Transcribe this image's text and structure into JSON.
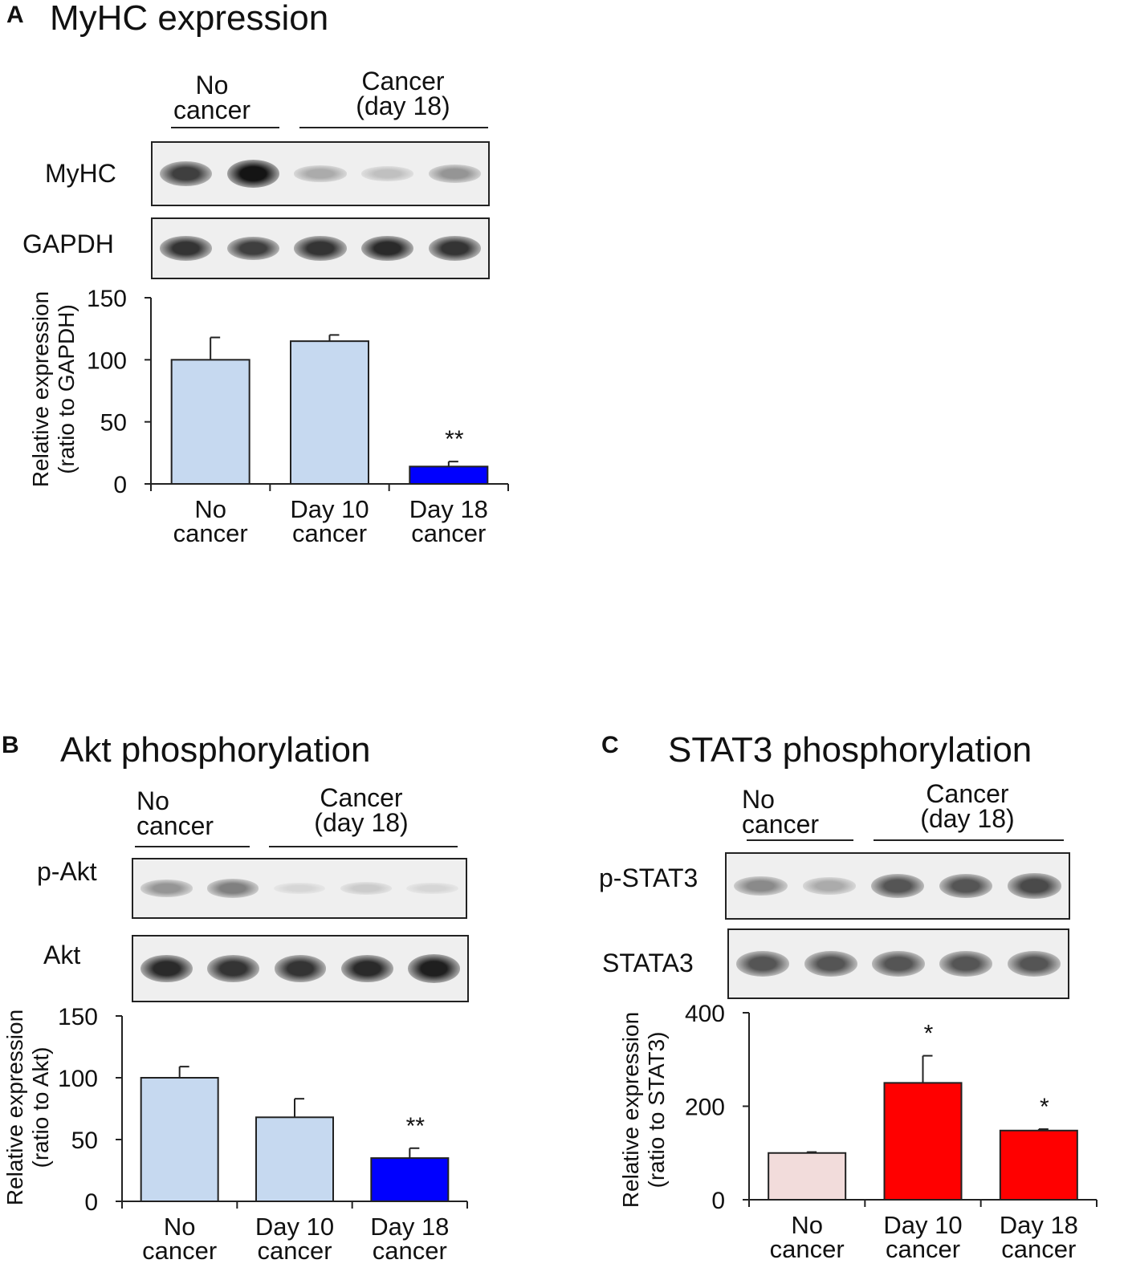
{
  "panels": [
    {
      "letter": "A",
      "title": "MyHC expression",
      "groups": [
        "No\ncancer",
        "Cancer\n(day 18)"
      ],
      "blots": [
        {
          "label": "MyHC",
          "intensities": [
            0.8,
            1.0,
            0.3,
            0.2,
            0.4
          ]
        },
        {
          "label": "GAPDH",
          "intensities": [
            0.85,
            0.8,
            0.85,
            0.9,
            0.85
          ]
        }
      ]
    },
    {
      "letter": "B",
      "title": "Akt phosphorylation",
      "groups": [
        "No\ncancer",
        "Cancer\n(day 18)"
      ],
      "blots": [
        {
          "label": "p-Akt",
          "intensities": [
            0.4,
            0.5,
            0.1,
            0.15,
            0.1
          ]
        },
        {
          "label": "Akt",
          "intensities": [
            0.9,
            0.85,
            0.85,
            0.9,
            0.95
          ]
        }
      ]
    },
    {
      "letter": "C",
      "title": "STAT3 phosphorylation",
      "groups": [
        "No\ncancer",
        "Cancer\n(day 18)"
      ],
      "blots": [
        {
          "label": "p-STAT3",
          "intensities": [
            0.45,
            0.3,
            0.7,
            0.7,
            0.75
          ]
        },
        {
          "label": "STATA3",
          "intensities": [
            0.7,
            0.7,
            0.7,
            0.7,
            0.7
          ]
        }
      ]
    }
  ],
  "chart_data": [
    {
      "type": "bar",
      "ylabel": "Relative expression\n(ratio to GAPDH)",
      "categories": [
        "No\ncancer",
        "Day 10\ncancer",
        "Day 18\ncancer"
      ],
      "values": [
        100,
        115,
        14
      ],
      "errors": [
        18,
        5,
        4
      ],
      "significance": [
        "",
        "",
        "**"
      ],
      "colors": [
        "#c6d9f0",
        "#c6d9f0",
        "#0000ff"
      ],
      "yticks": [
        0,
        50,
        100,
        150
      ],
      "ylim": [
        0,
        150
      ]
    },
    {
      "type": "bar",
      "ylabel": "Relative expression\n(ratio to Akt)",
      "categories": [
        "No\ncancer",
        "Day 10\ncancer",
        "Day 18\ncancer"
      ],
      "values": [
        100,
        68,
        35
      ],
      "errors": [
        9,
        15,
        8
      ],
      "significance": [
        "",
        "",
        "**"
      ],
      "colors": [
        "#c6d9f0",
        "#c6d9f0",
        "#0000ff"
      ],
      "yticks": [
        0,
        50,
        100,
        150
      ],
      "ylim": [
        0,
        150
      ]
    },
    {
      "type": "bar",
      "ylabel": "Relative expression\n(ratio to STAT3)",
      "categories": [
        "No\ncancer",
        "Day 10\ncancer",
        "Day 18\ncancer"
      ],
      "values": [
        100,
        250,
        148
      ],
      "errors": [
        2,
        58,
        3
      ],
      "significance": [
        "",
        "*",
        "*"
      ],
      "colors": [
        "#f2dcdb",
        "#ff0000",
        "#ff0000"
      ],
      "yticks": [
        0,
        200,
        400
      ],
      "ylim": [
        0,
        400
      ]
    }
  ]
}
